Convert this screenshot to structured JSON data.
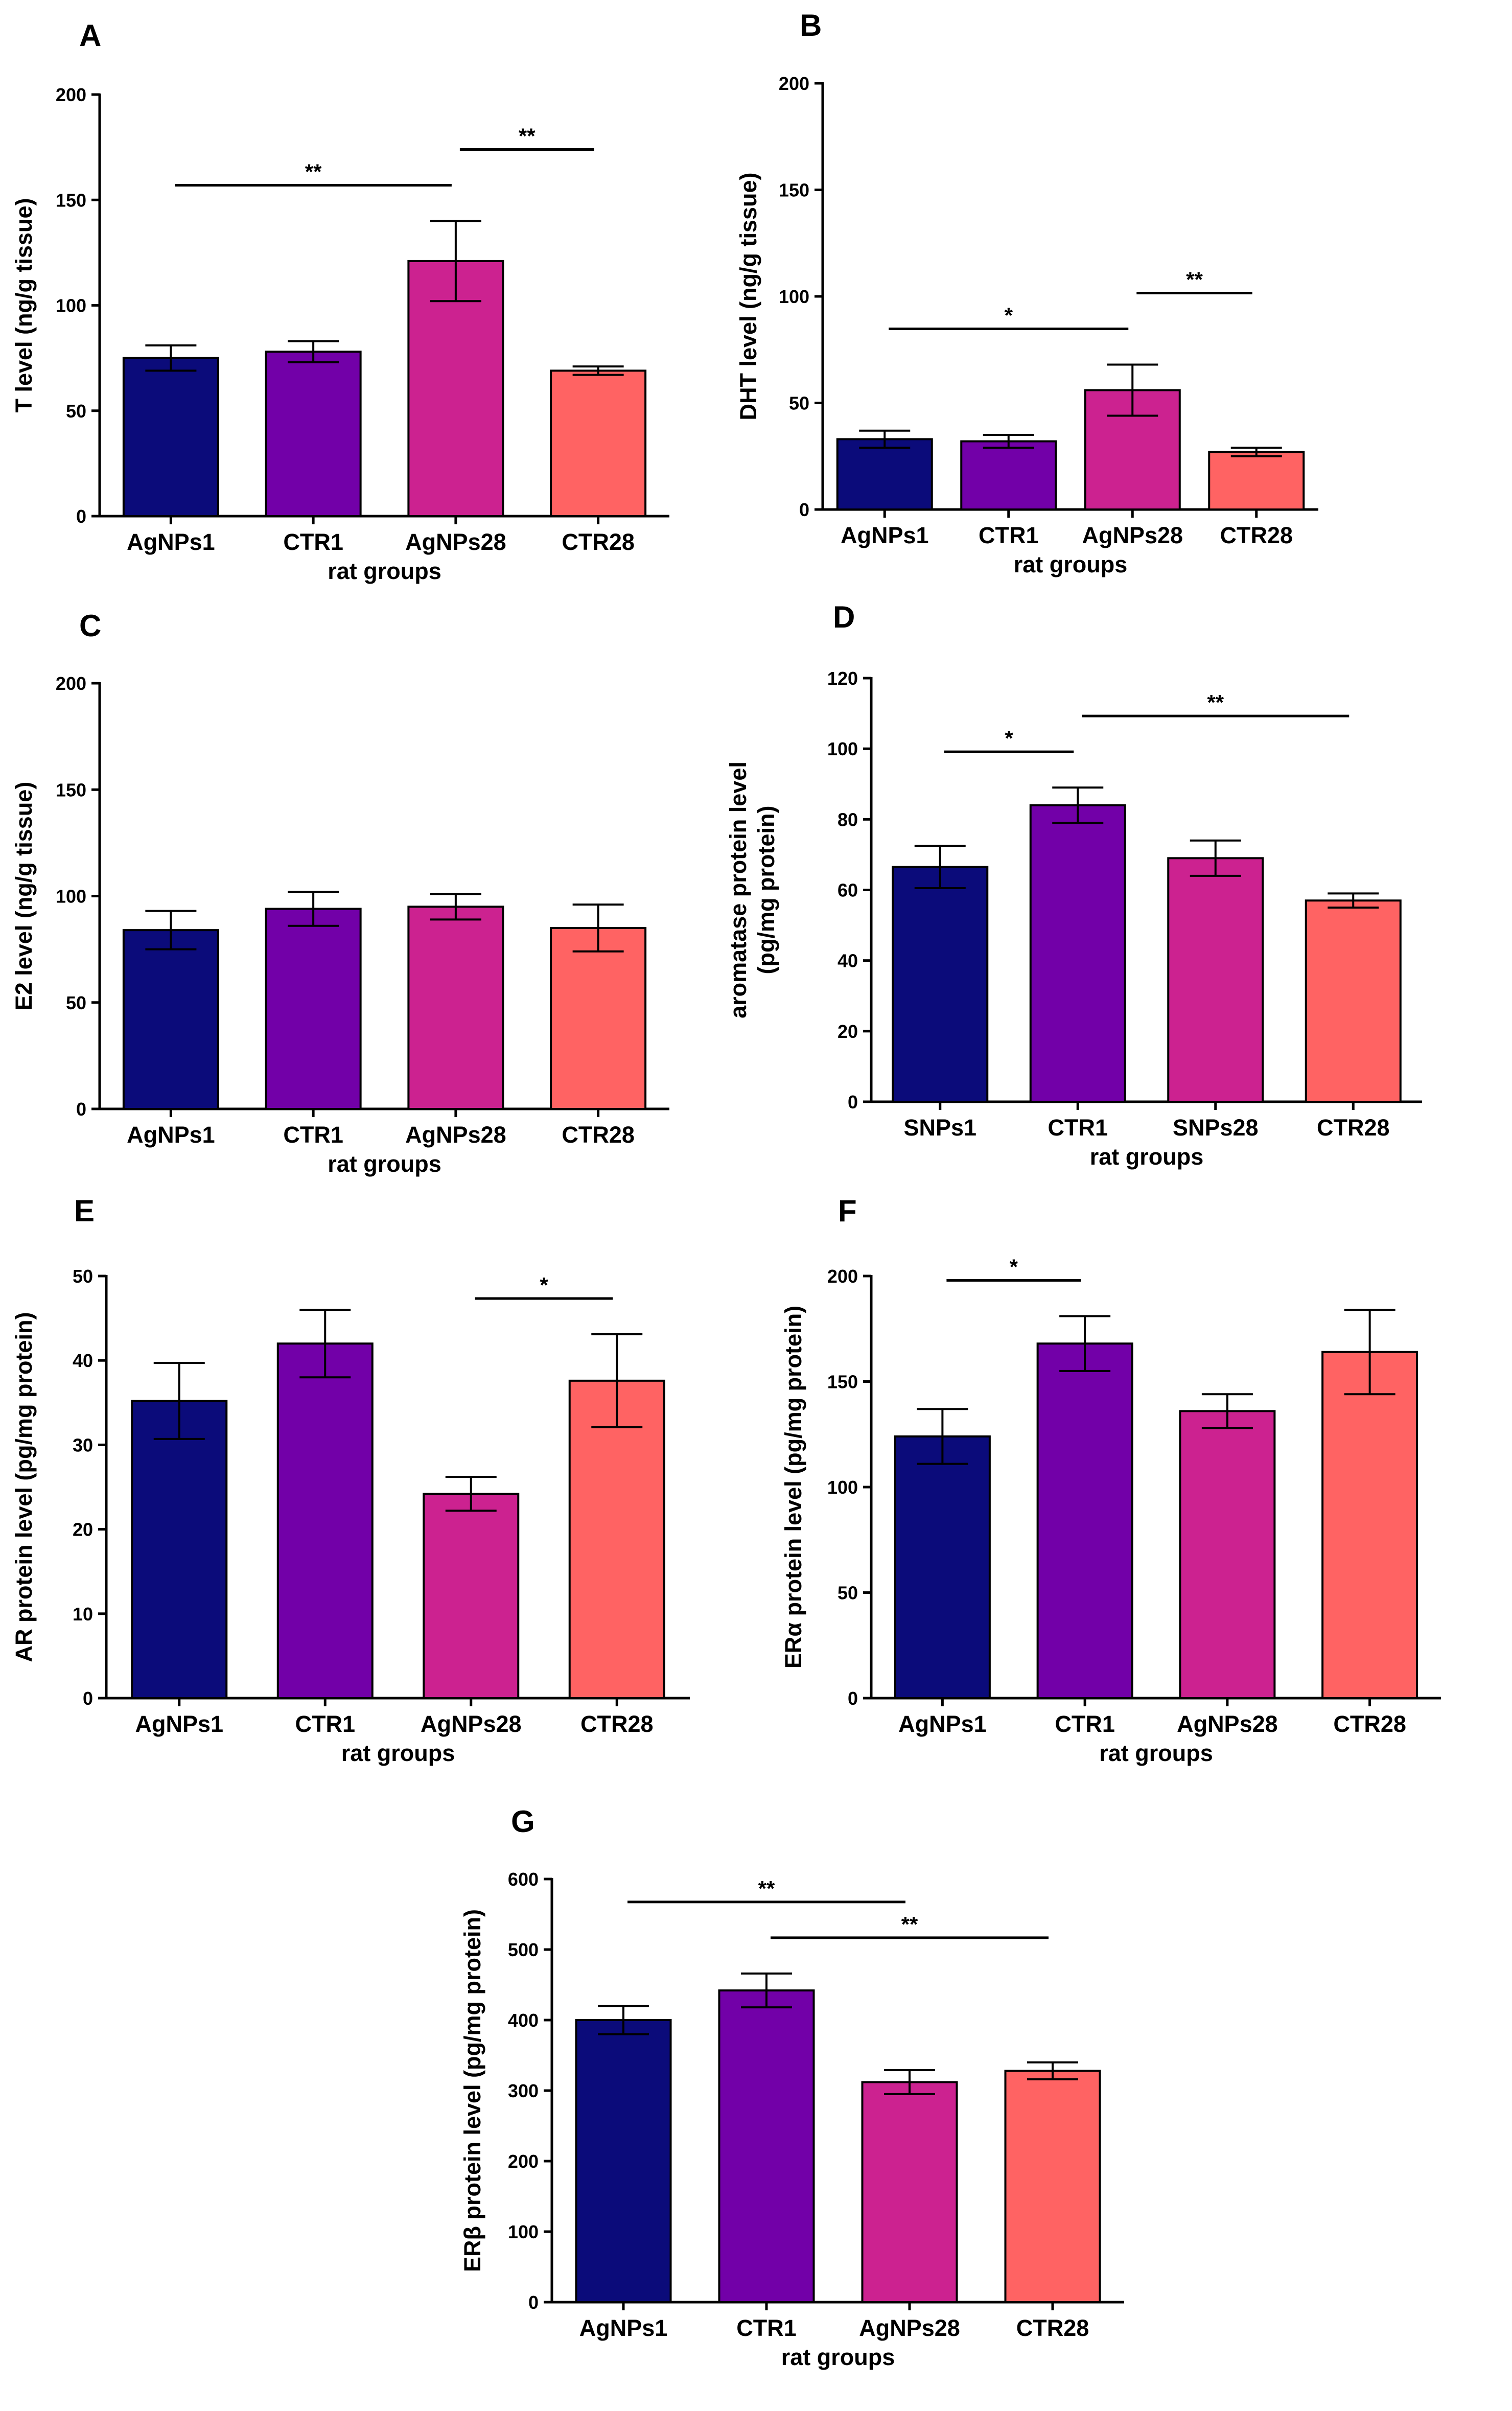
{
  "figure": {
    "caption": ""
  },
  "colors": {
    "AgNPs1": "#0b0b7a",
    "CTR1": "#7200a8",
    "AgNPs28": "#cc2290",
    "CTR28": "#ff6363",
    "SNPs1": "#0b0b7a",
    "SNPs28": "#cc2290"
  },
  "chart_data": [
    {
      "type": "bar",
      "panel": "A",
      "categories": [
        "AgNPs1",
        "CTR1",
        "AgNPs28",
        "CTR28"
      ],
      "values": [
        75,
        78,
        121,
        69
      ],
      "errors": [
        6,
        5,
        19,
        2
      ],
      "xlabel": "rat groups",
      "ylabel": "T level (ng/g tissue)",
      "ylim": [
        0,
        200
      ],
      "yticks": [
        "0",
        "50",
        "100",
        "150",
        "200"
      ],
      "significance": [
        {
          "from": 0,
          "to": 2,
          "label": "**"
        },
        {
          "from": 2,
          "to": 3,
          "label": "**"
        }
      ]
    },
    {
      "type": "bar",
      "panel": "B",
      "categories": [
        "AgNPs1",
        "CTR1",
        "AgNPs28",
        "CTR28"
      ],
      "values": [
        33,
        32,
        56,
        27
      ],
      "errors": [
        4,
        3,
        12,
        2
      ],
      "xlabel": "rat groups",
      "ylabel": "DHT level (ng/g tissue)",
      "ylim": [
        0,
        200
      ],
      "yticks": [
        "0",
        "50",
        "100",
        "150",
        "200"
      ],
      "significance": [
        {
          "from": 0,
          "to": 2,
          "label": "*"
        },
        {
          "from": 2,
          "to": 3,
          "label": "**"
        }
      ]
    },
    {
      "type": "bar",
      "panel": "C",
      "categories": [
        "AgNPs1",
        "CTR1",
        "AgNPs28",
        "CTR28"
      ],
      "values": [
        84,
        94,
        95,
        85
      ],
      "errors": [
        9,
        8,
        6,
        11
      ],
      "xlabel": "rat groups",
      "ylabel": "E2 level (ng/g tissue)",
      "ylim": [
        0,
        200
      ],
      "yticks": [
        "0",
        "50",
        "100",
        "150",
        "200"
      ],
      "significance": []
    },
    {
      "type": "bar",
      "panel": "D",
      "categories": [
        "SNPs1",
        "CTR1",
        "SNPs28",
        "CTR28"
      ],
      "values": [
        66.5,
        84,
        69,
        57
      ],
      "errors": [
        6,
        5,
        5,
        2
      ],
      "xlabel": "rat groups",
      "ylabel": "aromatase protein level (pg/mg protein)",
      "ylabel_lines": [
        "aromatase protein level",
        "(pg/mg protein)"
      ],
      "ylim": [
        0,
        120
      ],
      "yticks": [
        "0",
        "20",
        "40",
        "60",
        "80",
        "100",
        "120"
      ],
      "significance": [
        {
          "from": 0,
          "to": 1,
          "label": "*"
        },
        {
          "from": 1,
          "to": 3,
          "label": "**"
        }
      ]
    },
    {
      "type": "bar",
      "panel": "E",
      "categories": [
        "AgNPs1",
        "CTR1",
        "AgNPs28",
        "CTR28"
      ],
      "values": [
        35.2,
        42,
        24.2,
        37.6
      ],
      "errors": [
        4.5,
        4,
        2,
        5.5
      ],
      "xlabel": "rat groups",
      "ylabel": "AR protein level (pg/mg protein)",
      "ylim": [
        0,
        50
      ],
      "yticks": [
        "0",
        "10",
        "20",
        "30",
        "40",
        "50"
      ],
      "significance": [
        {
          "from": 2,
          "to": 3,
          "label": "*"
        }
      ]
    },
    {
      "type": "bar",
      "panel": "F",
      "categories": [
        "AgNPs1",
        "CTR1",
        "AgNPs28",
        "CTR28"
      ],
      "values": [
        124,
        168,
        136,
        164
      ],
      "errors": [
        13,
        13,
        8,
        20
      ],
      "xlabel": "rat groups",
      "ylabel": "ERα protein level (pg/mg protein)",
      "ylim": [
        0,
        200
      ],
      "yticks": [
        "0",
        "50",
        "100",
        "150",
        "200"
      ],
      "significance": [
        {
          "from": 0,
          "to": 1,
          "label": "*"
        }
      ]
    },
    {
      "type": "bar",
      "panel": "G",
      "categories": [
        "AgNPs1",
        "CTR1",
        "AgNPs28",
        "CTR28"
      ],
      "values": [
        400,
        442,
        312,
        328
      ],
      "errors": [
        20,
        24,
        17,
        12
      ],
      "xlabel": "rat groups",
      "ylabel": "ERβ protein level (pg/mg protein)",
      "ylim": [
        0,
        600
      ],
      "yticks": [
        "0",
        "100",
        "200",
        "300",
        "400",
        "500",
        "600"
      ],
      "significance": [
        {
          "from": 1,
          "to": 3,
          "label": "**"
        },
        {
          "from": 0,
          "to": 2,
          "label": "**"
        }
      ]
    }
  ]
}
